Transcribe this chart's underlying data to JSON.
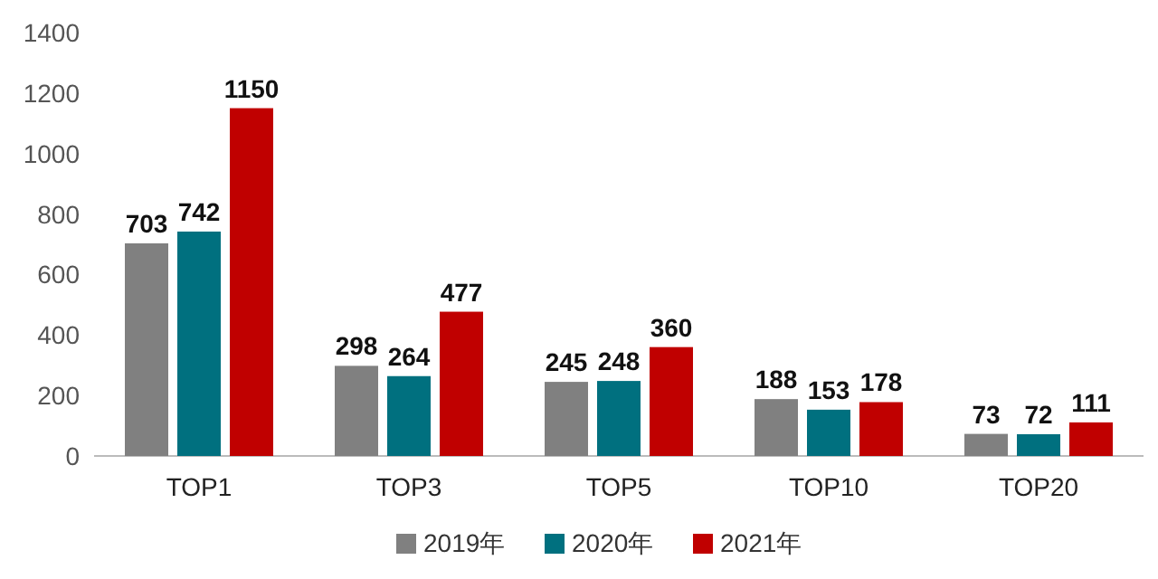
{
  "chart_data": {
    "type": "bar",
    "categories": [
      "TOP1",
      "TOP3",
      "TOP5",
      "TOP10",
      "TOP20"
    ],
    "series": [
      {
        "name": "2019年",
        "color": "#808080",
        "values": [
          703,
          298,
          245,
          188,
          73
        ]
      },
      {
        "name": "2020年",
        "color": "#00707f",
        "values": [
          742,
          264,
          248,
          153,
          72
        ]
      },
      {
        "name": "2021年",
        "color": "#c00000",
        "values": [
          1150,
          477,
          360,
          178,
          111
        ]
      }
    ],
    "ylim": [
      0,
      1400
    ],
    "yticks": [
      0,
      200,
      400,
      600,
      800,
      1000,
      1200,
      1400
    ],
    "data_labels": true,
    "legend": "bottom",
    "grid": false
  }
}
